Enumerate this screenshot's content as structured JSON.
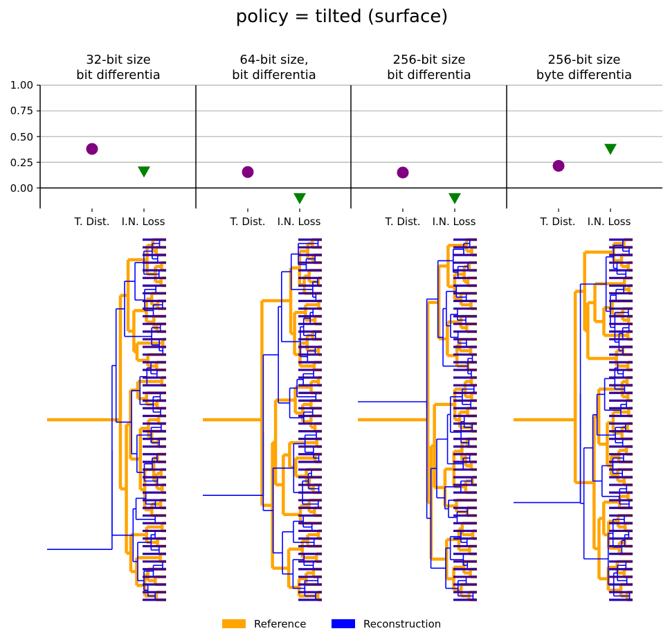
{
  "figure": {
    "suptitle": "policy = tilted (surface)",
    "legend": [
      {
        "label": "Reference",
        "color": "#FFA500"
      },
      {
        "label": "Reconstruction",
        "color": "#0000FF"
      }
    ]
  },
  "colors": {
    "reference": "#FFA500",
    "reconstruction": "#0000FF",
    "tip_line": "#8B0000",
    "t_dist_marker": "#800080",
    "in_loss_marker": "#008000",
    "grid": "#b0b0b0"
  },
  "chart_data": [
    {
      "type": "scatter",
      "title_line1": "32-bit size",
      "title_line2": "bit differentia",
      "categories": [
        "T. Dist.",
        "I.N. Loss"
      ],
      "values": [
        0.38,
        0.155
      ],
      "ylim": [
        -0.2,
        1.0
      ],
      "yticks": [
        "1.00",
        "0.75",
        "0.50",
        "0.25",
        "0.00"
      ],
      "grid": true,
      "tree": {
        "tips": 48,
        "ref_root_frac": 0.5,
        "rec_root_frac": 0.86,
        "seed": 11
      }
    },
    {
      "type": "scatter",
      "title_line1": "64-bit size,",
      "title_line2": "bit differentia",
      "categories": [
        "T. Dist.",
        "I.N. Loss"
      ],
      "values": [
        0.155,
        -0.105
      ],
      "ylim": [
        -0.2,
        1.0
      ],
      "yticks": [
        "1.00",
        "0.75",
        "0.50",
        "0.25",
        "0.00"
      ],
      "grid": true,
      "tree": {
        "tips": 48,
        "ref_root_frac": 0.5,
        "rec_root_frac": 0.71,
        "seed": 23
      }
    },
    {
      "type": "scatter",
      "title_line1": "256-bit size",
      "title_line2": "bit differentia",
      "categories": [
        "T. Dist.",
        "I.N. Loss"
      ],
      "values": [
        0.15,
        -0.105
      ],
      "ylim": [
        -0.2,
        1.0
      ],
      "yticks": [
        "1.00",
        "0.75",
        "0.50",
        "0.25",
        "0.00"
      ],
      "grid": true,
      "tree": {
        "tips": 48,
        "ref_root_frac": 0.5,
        "rec_root_frac": 0.45,
        "seed": 37
      }
    },
    {
      "type": "scatter",
      "title_line1": "256-bit size",
      "title_line2": "byte differentia",
      "categories": [
        "T. Dist.",
        "I.N. Loss"
      ],
      "values": [
        0.215,
        0.375
      ],
      "ylim": [
        -0.2,
        1.0
      ],
      "yticks": [
        "1.00",
        "0.75",
        "0.50",
        "0.25",
        "0.00"
      ],
      "grid": true,
      "tree": {
        "tips": 48,
        "ref_root_frac": 0.5,
        "rec_root_frac": 0.73,
        "seed": 53
      }
    }
  ]
}
